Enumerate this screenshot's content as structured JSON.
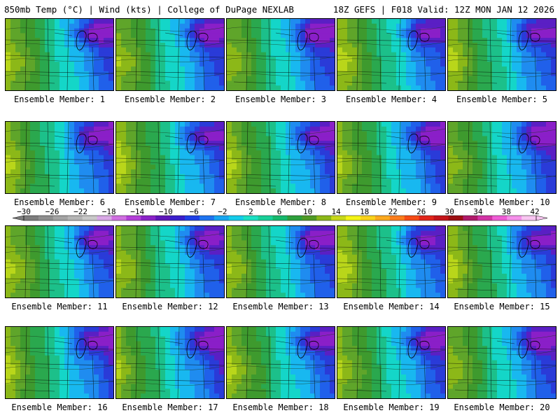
{
  "header": {
    "title_left": "850mb Temp (°C) | Wind (kts) | College of DuPage NEXLAB",
    "title_right": "18Z GEFS | F018 Valid: 12Z MON JAN 12 2026"
  },
  "colorbar": {
    "labels": [
      "−30",
      "−26",
      "−22",
      "−18",
      "−14",
      "−10",
      "−6",
      "−2",
      "2",
      "6",
      "10",
      "14",
      "18",
      "22",
      "26",
      "30",
      "34",
      "38",
      "42"
    ],
    "colors": [
      "#7d7d7d",
      "#8f8f8f",
      "#a3a3a3",
      "#b5b5b5",
      "#c8c8c8",
      "#d9a9e6",
      "#cf6fe0",
      "#b43fd8",
      "#8a22c8",
      "#5e17b8",
      "#3a1fcc",
      "#1f40e6",
      "#1f74f0",
      "#18a6f0",
      "#14ccea",
      "#1ce0c4",
      "#19cf98",
      "#16b86c",
      "#2e9f3c",
      "#4f9a25",
      "#8cb818",
      "#c8d81a",
      "#f4f416",
      "#f9d21b",
      "#fba91f",
      "#fb7d1c",
      "#f54b16",
      "#e1261a",
      "#c4151b",
      "#9c0f12",
      "#b01a6a",
      "#d234a6",
      "#ef5cd6",
      "#f590ea",
      "#f8c5f1"
    ]
  },
  "members": [
    {
      "n": 1,
      "caption": "Ensemble Member: 1"
    },
    {
      "n": 2,
      "caption": "Ensemble Member: 2"
    },
    {
      "n": 3,
      "caption": "Ensemble Member: 3"
    },
    {
      "n": 4,
      "caption": "Ensemble Member: 4"
    },
    {
      "n": 5,
      "caption": "Ensemble Member: 5"
    },
    {
      "n": 6,
      "caption": "Ensemble Member: 6"
    },
    {
      "n": 7,
      "caption": "Ensemble Member: 7"
    },
    {
      "n": 8,
      "caption": "Ensemble Member: 8"
    },
    {
      "n": 9,
      "caption": "Ensemble Member: 9"
    },
    {
      "n": 10,
      "caption": "Ensemble Member: 10"
    },
    {
      "n": 11,
      "caption": "Ensemble Member: 11"
    },
    {
      "n": 12,
      "caption": "Ensemble Member: 12"
    },
    {
      "n": 13,
      "caption": "Ensemble Member: 13"
    },
    {
      "n": 14,
      "caption": "Ensemble Member: 14"
    },
    {
      "n": 15,
      "caption": "Ensemble Member: 15"
    },
    {
      "n": 16,
      "caption": "Ensemble Member: 16"
    },
    {
      "n": 17,
      "caption": "Ensemble Member: 17"
    },
    {
      "n": 18,
      "caption": "Ensemble Member: 18"
    },
    {
      "n": 19,
      "caption": "Ensemble Member: 19"
    },
    {
      "n": 20,
      "caption": "Ensemble Member: 20"
    }
  ]
}
